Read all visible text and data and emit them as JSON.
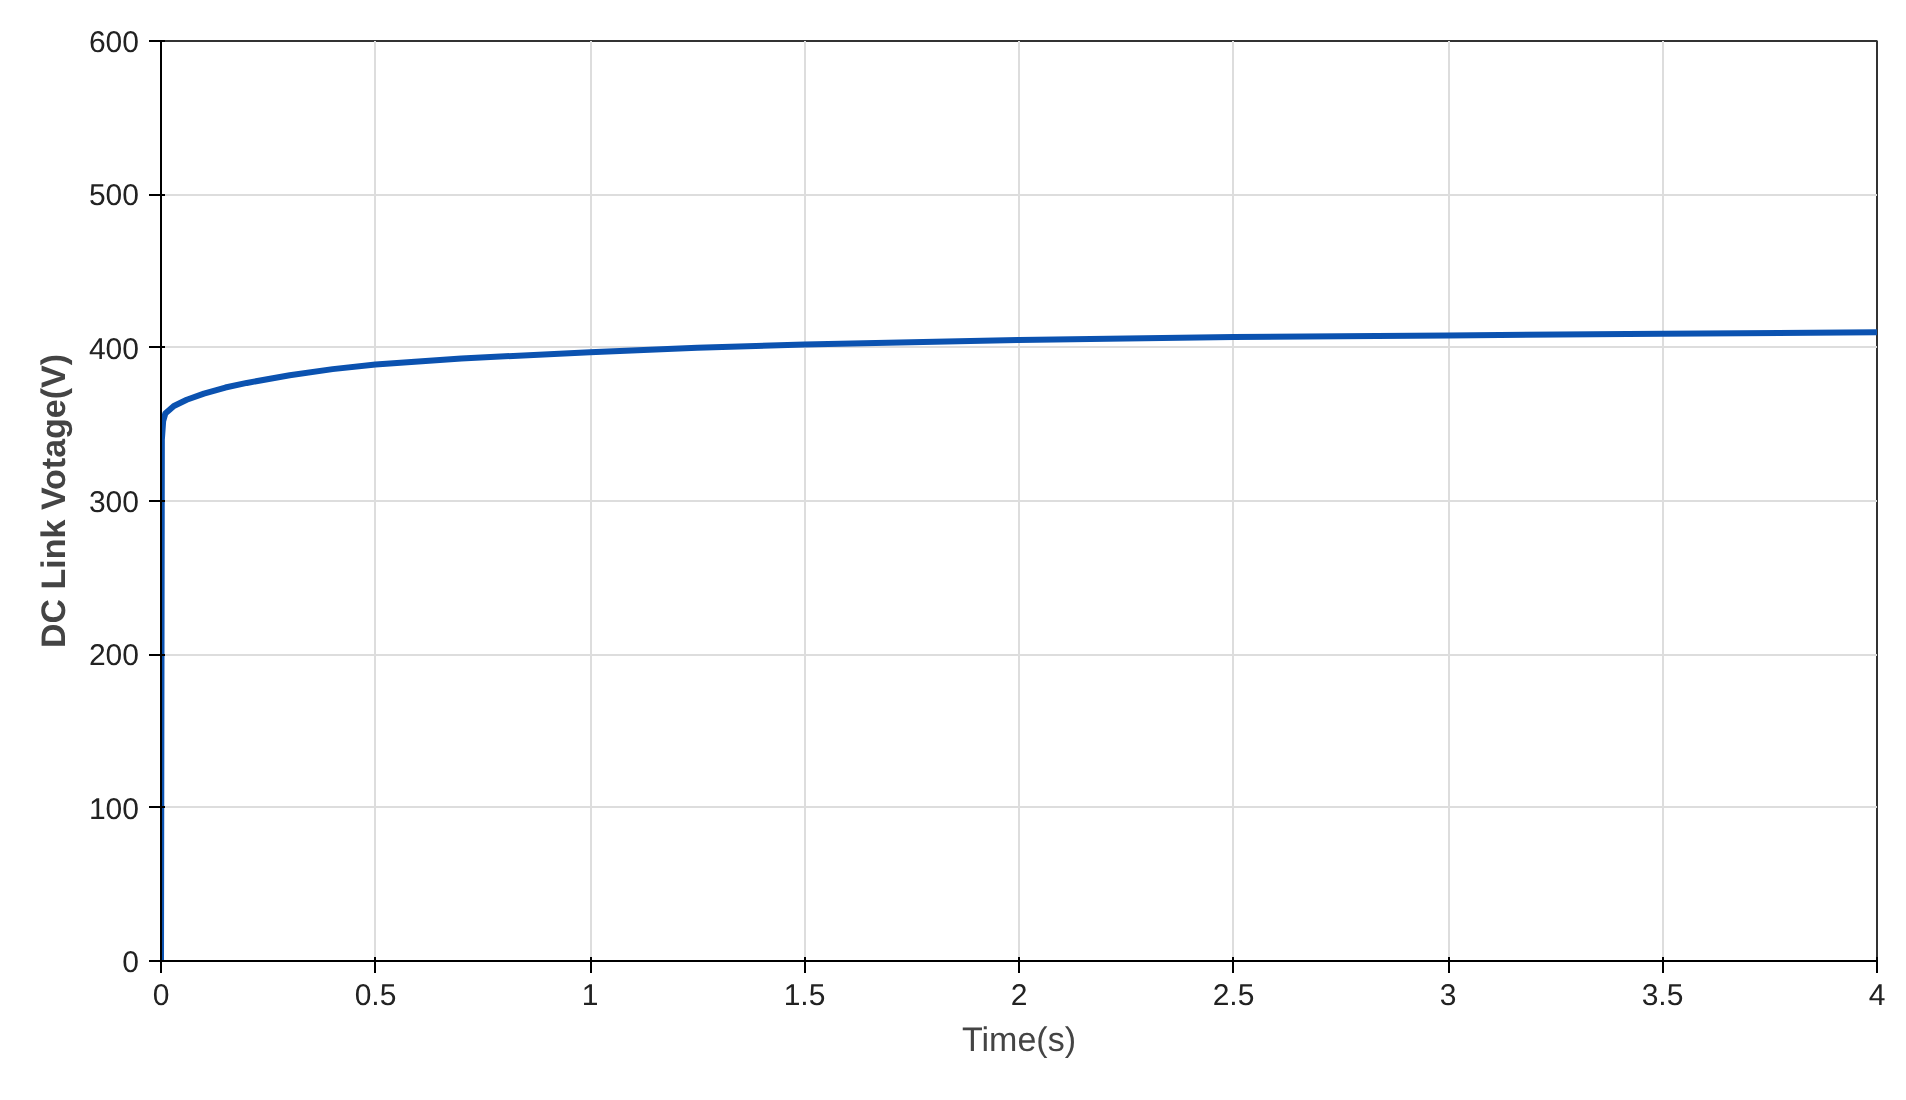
{
  "chart_data": {
    "type": "line",
    "xlabel": "Time(s)",
    "ylabel": "DC Link Votage(V)",
    "x": [
      0,
      0.002,
      0.005,
      0.01,
      0.03,
      0.06,
      0.1,
      0.15,
      0.2,
      0.3,
      0.4,
      0.5,
      0.7,
      1,
      1.25,
      1.5,
      2,
      2.5,
      3,
      3.5,
      4
    ],
    "series": [
      {
        "color": "#0b52b0",
        "values": [
          0,
          340,
          352,
          357,
          362,
          366,
          370,
          374,
          377,
          382,
          386,
          389,
          393,
          397,
          400,
          402,
          405,
          407,
          408,
          409,
          410
        ]
      }
    ],
    "xlim": [
      0,
      4
    ],
    "ylim": [
      0,
      600
    ],
    "xticks": [
      0,
      0.5,
      1,
      1.5,
      2,
      2.5,
      3,
      3.5,
      4
    ],
    "yticks": [
      0,
      100,
      200,
      300,
      400,
      500,
      600
    ],
    "grid": true,
    "marker": "none",
    "line_style": "solid"
  }
}
